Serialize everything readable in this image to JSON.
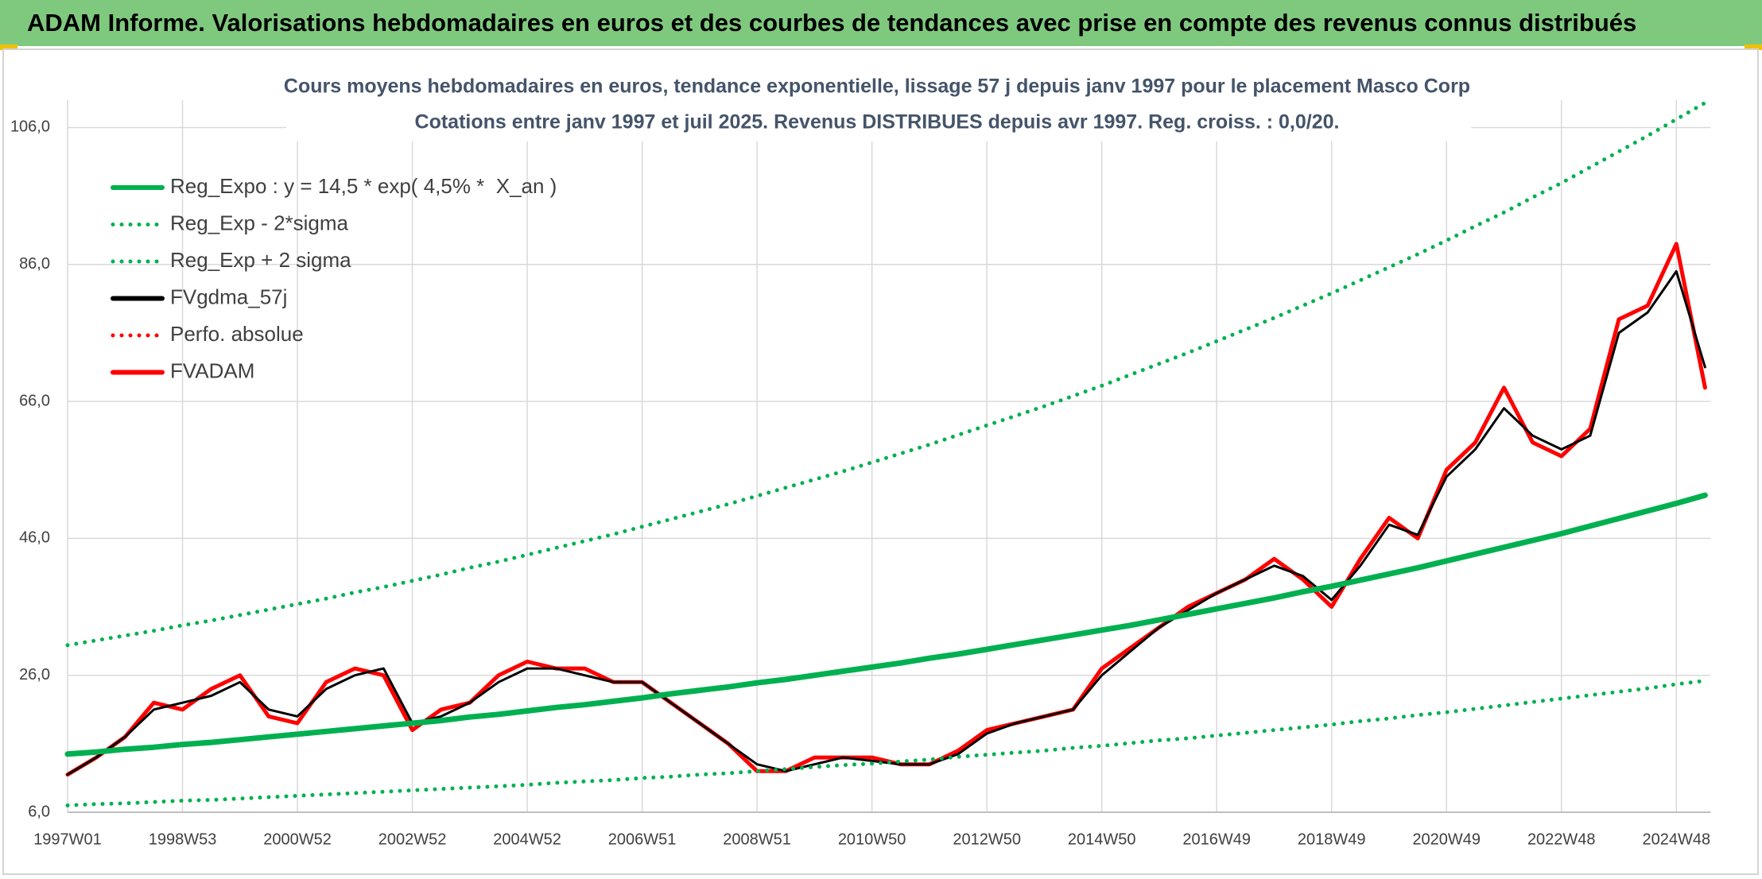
{
  "header": {
    "title": "ADAM Informe. Valorisations hebdomadaires en euros et des courbes de tendances avec prise en compte des revenus connus distribués"
  },
  "chart_data": {
    "type": "line",
    "title": "Cours moyens hebdomadaires en euros, tendance exponentielle, lissage 57 j depuis janv 1997 pour le placement Masco Corp",
    "subtitle": "Cotations entre janv 1997 et juil 2025. Revenus DISTRIBUES depuis avr 1997. Reg. croiss. : 0,0/20.",
    "categories": [
      "1997W01",
      null,
      null,
      null,
      "1998W53",
      null,
      null,
      null,
      "2000W52",
      null,
      null,
      null,
      "2002W52",
      null,
      null,
      null,
      "2004W52",
      null,
      null,
      null,
      "2006W51",
      null,
      null,
      null,
      "2008W51",
      null,
      null,
      null,
      "2010W50",
      null,
      null,
      null,
      "2012W50",
      null,
      null,
      null,
      "2014W50",
      null,
      null,
      null,
      "2016W49",
      null,
      null,
      null,
      "2018W49",
      null,
      null,
      null,
      "2020W49",
      null,
      null,
      null,
      "2022W48",
      null,
      null,
      null,
      "2024W48",
      null
    ],
    "series": [
      {
        "name": "Reg_Expo : y = 14,5 * exp( 4,5% *  X_an )",
        "color": "#00b050",
        "line_style": "solid",
        "values": [
          14.5,
          14.8,
          15.2,
          15.5,
          15.9,
          16.2,
          16.6,
          17.0,
          17.4,
          17.8,
          18.2,
          18.6,
          19.0,
          19.4,
          19.9,
          20.3,
          20.8,
          21.3,
          21.7,
          22.2,
          22.7,
          23.3,
          23.8,
          24.3,
          24.9,
          25.4,
          26.0,
          26.6,
          27.2,
          27.8,
          28.5,
          29.1,
          29.8,
          30.5,
          31.2,
          31.9,
          32.6,
          33.3,
          34.1,
          34.9,
          35.7,
          36.5,
          37.3,
          38.2,
          39.0,
          39.9,
          40.8,
          41.7,
          42.7,
          43.7,
          44.7,
          45.7,
          46.7,
          47.8,
          48.9,
          50.0,
          51.1,
          52.3
        ]
      },
      {
        "name": "Reg_Exp - 2*sigma",
        "color": "#00b050",
        "line_style": "dotted",
        "values": [
          7.0,
          7.2,
          7.3,
          7.5,
          7.7,
          7.8,
          8.0,
          8.2,
          8.4,
          8.6,
          8.8,
          9.0,
          9.2,
          9.4,
          9.6,
          9.8,
          10.0,
          10.3,
          10.5,
          10.7,
          11.0,
          11.2,
          11.5,
          11.7,
          12.0,
          12.3,
          12.6,
          12.9,
          13.1,
          13.4,
          13.7,
          14.1,
          14.4,
          14.7,
          15.0,
          15.4,
          15.7,
          16.1,
          16.5,
          16.8,
          17.2,
          17.6,
          18.0,
          18.4,
          18.8,
          19.3,
          19.7,
          20.2,
          20.6,
          21.1,
          21.6,
          22.1,
          22.6,
          23.1,
          23.6,
          24.1,
          24.7,
          25.2
        ]
      },
      {
        "name": "Reg_Exp + 2 sigma",
        "color": "#00b050",
        "line_style": "dotted",
        "values": [
          30.4,
          31.1,
          31.8,
          32.5,
          33.3,
          34.0,
          34.8,
          35.6,
          36.4,
          37.2,
          38.1,
          38.9,
          39.8,
          40.7,
          41.7,
          42.6,
          43.6,
          44.6,
          45.6,
          46.6,
          47.7,
          48.8,
          49.9,
          51.0,
          52.2,
          53.4,
          54.6,
          55.8,
          57.1,
          58.4,
          59.7,
          61.1,
          62.5,
          63.9,
          65.3,
          66.8,
          68.3,
          69.9,
          71.5,
          73.1,
          74.8,
          76.5,
          78.2,
          80.0,
          81.8,
          83.7,
          85.6,
          87.5,
          89.5,
          91.6,
          93.6,
          95.8,
          97.9,
          100.2,
          102.5,
          104.8,
          107.2,
          109.6
        ]
      },
      {
        "name": "FVgdma_57j",
        "color": "#000000",
        "line_style": "solid",
        "values": [
          11.5,
          14,
          17,
          21,
          22,
          23,
          25,
          21,
          20,
          24,
          26,
          27,
          19,
          20,
          22,
          25,
          27,
          27,
          26,
          25,
          25,
          22,
          19,
          16,
          13,
          12,
          13,
          14,
          13.5,
          13,
          13,
          14.5,
          17.5,
          19,
          20,
          21,
          26,
          29.5,
          33,
          35.5,
          38,
          40,
          42,
          40.5,
          37,
          42,
          48,
          46.5,
          55,
          59,
          65,
          61,
          59,
          61,
          76,
          79,
          85,
          71
        ]
      },
      {
        "name": "Perfo. absolue",
        "color": "#ff0000",
        "line_style": "dotted"
      },
      {
        "name": "FVADAM",
        "color": "#ff0000",
        "line_style": "solid",
        "values": [
          11.5,
          14,
          17,
          22,
          21,
          24,
          26,
          20,
          19,
          25,
          27,
          26,
          18,
          21,
          22,
          26,
          28,
          27,
          27,
          25,
          25,
          22,
          19,
          16,
          12,
          12,
          14,
          14,
          14,
          13,
          13,
          15,
          18,
          19,
          20,
          21,
          27,
          30,
          33,
          36,
          38,
          40,
          43,
          40,
          36,
          43,
          49,
          46,
          56,
          60,
          68,
          60,
          58,
          62,
          78,
          80,
          89,
          68
        ]
      }
    ],
    "ylim": [
      6,
      110
    ],
    "yticks": [
      {
        "value": 6,
        "label": "6,0"
      },
      {
        "value": 26,
        "label": "26,0"
      },
      {
        "value": 46,
        "label": "46,0"
      },
      {
        "value": 66,
        "label": "66,0"
      },
      {
        "value": 86,
        "label": "86,0"
      },
      {
        "value": 106,
        "label": "106,0"
      }
    ],
    "grid": true,
    "legend": "upper-left"
  }
}
